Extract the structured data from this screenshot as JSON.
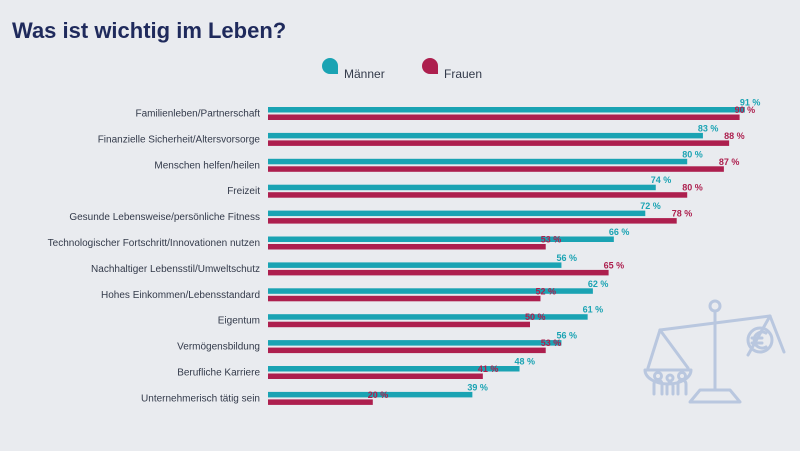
{
  "colors": {
    "men": "#1aa3b3",
    "women": "#ad1f4e",
    "title": "#1f2a5c",
    "background": "#e9ebef",
    "icon": "#b9c7df"
  },
  "icon": "balance-scale-family-euro-icon",
  "chart_data": {
    "type": "bar",
    "orientation": "horizontal",
    "title": "Was ist wichtig im Leben?",
    "xlabel": "",
    "ylabel": "",
    "xlim": [
      0,
      100
    ],
    "grid": false,
    "legend_position": "top",
    "unit_suffix": " %",
    "categories": [
      "Familienleben/Partnerschaft",
      "Finanzielle Sicherheit/Altersvorsorge",
      "Menschen helfen/heilen",
      "Freizeit",
      "Gesunde Lebensweise/persönliche Fitness",
      "Technologischer Fortschritt/Innovationen nutzen",
      "Nachhaltiger Lebensstil/Umweltschutz",
      "Hohes Einkommen/Lebensstandard",
      "Eigentum",
      "Vermögensbildung",
      "Berufliche Karriere",
      "Unternehmerisch tätig sein"
    ],
    "series": [
      {
        "name": "Männer",
        "values": [
          91,
          83,
          80,
          74,
          72,
          66,
          56,
          62,
          61,
          56,
          48,
          39
        ]
      },
      {
        "name": "Frauen",
        "values": [
          90,
          88,
          87,
          80,
          78,
          53,
          65,
          52,
          50,
          53,
          41,
          20
        ]
      }
    ]
  }
}
